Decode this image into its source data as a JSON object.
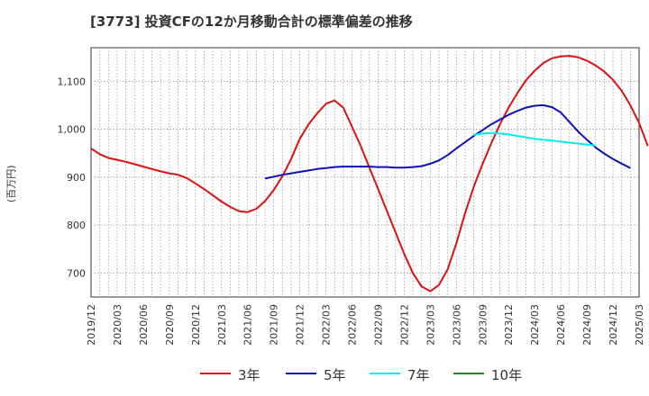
{
  "chart_data": {
    "type": "line",
    "title": "[3773]  投資CFの12か月移動合計の標準偏差の推移",
    "ylabel": "(百万円)",
    "xlabel": "",
    "ylim": [
      650,
      1170
    ],
    "yticks": [
      700,
      800,
      900,
      1000,
      1100
    ],
    "ytick_labels": [
      "700",
      "800",
      "900",
      "1,000",
      "1,100"
    ],
    "xlim": [
      "2019-12",
      "2025-03"
    ],
    "xtick_labels": [
      "2019/12",
      "2020/03",
      "2020/06",
      "2020/09",
      "2020/12",
      "2021/03",
      "2021/06",
      "2021/09",
      "2021/12",
      "2022/03",
      "2022/06",
      "2022/09",
      "2022/12",
      "2023/03",
      "2023/06",
      "2023/09",
      "2023/12",
      "2024/03",
      "2024/06",
      "2024/09",
      "2024/12",
      "2025/03"
    ],
    "grid": true,
    "legend_position": "bottom",
    "series": [
      {
        "name": "3年",
        "color": "#dd1111",
        "start": "2019-12",
        "values": [
          960,
          948,
          940,
          936,
          932,
          927,
          922,
          917,
          912,
          908,
          905,
          898,
          887,
          875,
          862,
          849,
          838,
          829,
          827,
          834,
          850,
          873,
          902,
          938,
          980,
          1010,
          1033,
          1053,
          1060,
          1045,
          1005,
          965,
          920,
          875,
          830,
          785,
          740,
          700,
          672,
          662,
          675,
          708,
          762,
          825,
          880,
          927,
          970,
          1010,
          1045,
          1075,
          1102,
          1122,
          1138,
          1148,
          1152,
          1153,
          1150,
          1143,
          1133,
          1120,
          1103,
          1080,
          1050,
          1013,
          965
        ]
      },
      {
        "name": "5年",
        "color": "#1010bb",
        "start": "2021-08",
        "values": [
          897,
          901,
          905,
          908,
          911,
          914,
          917,
          919,
          921,
          922,
          922,
          922,
          922,
          921,
          921,
          920,
          920,
          921,
          923,
          928,
          935,
          946,
          960,
          973,
          986,
          998,
          1010,
          1020,
          1030,
          1038,
          1045,
          1049,
          1050,
          1046,
          1035,
          1015,
          995,
          978,
          962,
          949,
          938,
          928,
          919
        ]
      },
      {
        "name": "7年",
        "color": "#00eeee",
        "start": "2023-08",
        "values": [
          988,
          991,
          992,
          991,
          989,
          986,
          983,
          980,
          978,
          976,
          974,
          972,
          970,
          968,
          966
        ]
      },
      {
        "name": "10年",
        "color": "#228822",
        "start": "2019-12",
        "values": []
      }
    ]
  }
}
